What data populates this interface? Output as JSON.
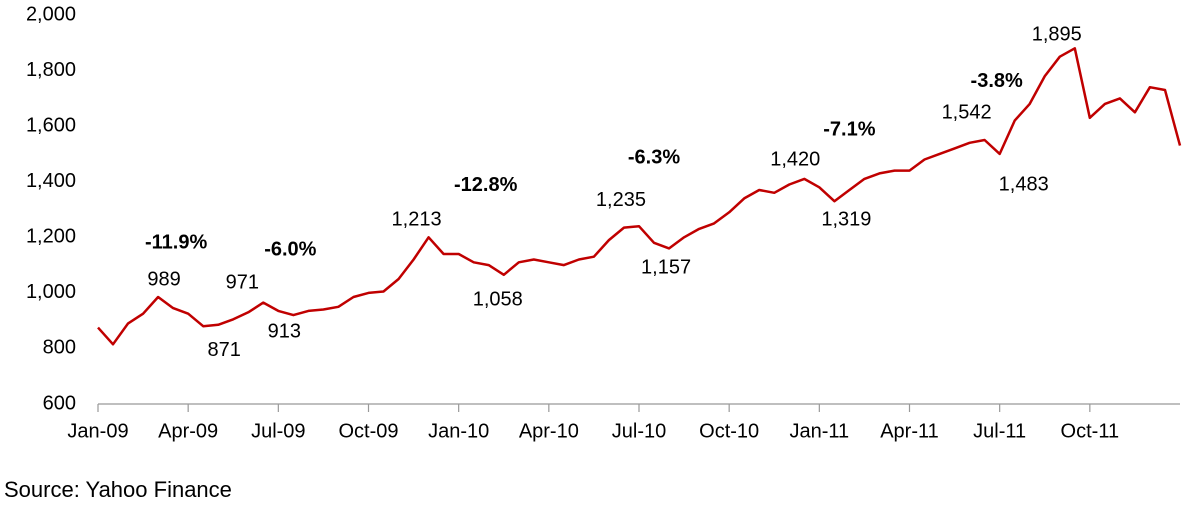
{
  "chart_data": {
    "type": "line",
    "source": "Source: Yahoo Finance",
    "x": [
      0,
      0.5,
      1,
      1.5,
      2,
      2.5,
      3,
      3.5,
      4,
      4.5,
      5,
      5.5,
      6,
      6.5,
      7,
      7.5,
      8,
      8.5,
      9,
      9.5,
      10,
      10.5,
      11,
      11.5,
      12,
      12.5,
      13,
      13.5,
      14,
      14.5,
      15,
      15.5,
      16,
      16.5,
      17,
      17.5,
      18,
      18.5,
      19,
      19.5,
      20,
      20.5,
      21,
      21.5,
      22,
      22.5,
      23,
      23.5,
      24,
      24.5,
      25,
      25.5,
      26,
      26.5,
      27,
      27.5,
      28,
      28.5,
      29,
      29.5,
      30,
      30.5,
      31,
      31.5,
      32,
      32.5,
      33,
      33.5,
      34,
      34.5,
      35,
      35.5,
      36
    ],
    "values": [
      875,
      815,
      890,
      925,
      985,
      945,
      925,
      880,
      885,
      905,
      930,
      965,
      935,
      920,
      935,
      940,
      950,
      985,
      1000,
      1005,
      1050,
      1120,
      1200,
      1140,
      1140,
      1110,
      1100,
      1065,
      1110,
      1120,
      1110,
      1100,
      1120,
      1130,
      1190,
      1235,
      1240,
      1180,
      1160,
      1200,
      1230,
      1250,
      1290,
      1340,
      1370,
      1360,
      1390,
      1410,
      1380,
      1330,
      1370,
      1410,
      1430,
      1440,
      1440,
      1480,
      1500,
      1520,
      1540,
      1550,
      1500,
      1620,
      1680,
      1780,
      1850,
      1880,
      1630,
      1680,
      1700,
      1650,
      1740,
      1730,
      1530
    ],
    "color": "#c00000",
    "xlim": [
      0,
      36
    ],
    "ylim": [
      600,
      2000
    ],
    "xticks": [
      {
        "value": 0,
        "label": "Jan-09"
      },
      {
        "value": 3,
        "label": "Apr-09"
      },
      {
        "value": 6,
        "label": "Jul-09"
      },
      {
        "value": 9,
        "label": "Oct-09"
      },
      {
        "value": 12,
        "label": "Jan-10"
      },
      {
        "value": 15,
        "label": "Apr-10"
      },
      {
        "value": 18,
        "label": "Jul-10"
      },
      {
        "value": 21,
        "label": "Oct-10"
      },
      {
        "value": 24,
        "label": "Jan-11"
      },
      {
        "value": 27,
        "label": "Apr-11"
      },
      {
        "value": 30,
        "label": "Jul-11"
      },
      {
        "value": 33,
        "label": "Oct-11"
      }
    ],
    "yticks": [
      600,
      800,
      {
        "value": 1000,
        "label": "1,000"
      },
      {
        "value": 1200,
        "label": "1,200"
      },
      {
        "value": 1400,
        "label": "1,400"
      },
      {
        "value": 1600,
        "label": "1,600"
      },
      {
        "value": 1800,
        "label": "1,800"
      },
      {
        "value": 2000,
        "label": "2,000"
      }
    ],
    "grid": false,
    "annotations": [
      {
        "text": "989",
        "x": 2.2,
        "y": 1046,
        "bold": false
      },
      {
        "text": "871",
        "x": 4.2,
        "y": 791,
        "bold": false
      },
      {
        "text": "-11.9%",
        "x": 2.6,
        "y": 1179,
        "bold": true
      },
      {
        "text": "971",
        "x": 4.8,
        "y": 1035,
        "bold": false
      },
      {
        "text": "-6.0%",
        "x": 6.4,
        "y": 1154,
        "bold": true
      },
      {
        "text": "913",
        "x": 6.2,
        "y": 859,
        "bold": false
      },
      {
        "text": "1,213",
        "x": 10.6,
        "y": 1262,
        "bold": false
      },
      {
        "text": "-12.8%",
        "x": 12.9,
        "y": 1385,
        "bold": true
      },
      {
        "text": "1,058",
        "x": 13.3,
        "y": 974,
        "bold": false
      },
      {
        "text": "1,235",
        "x": 17.4,
        "y": 1331,
        "bold": false
      },
      {
        "text": "-6.3%",
        "x": 18.5,
        "y": 1485,
        "bold": true
      },
      {
        "text": "1,157",
        "x": 18.9,
        "y": 1089,
        "bold": false
      },
      {
        "text": "1,420",
        "x": 23.2,
        "y": 1478,
        "bold": false
      },
      {
        "text": "-7.1%",
        "x": 25.0,
        "y": 1586,
        "bold": true
      },
      {
        "text": "1,319",
        "x": 24.9,
        "y": 1262,
        "bold": false
      },
      {
        "text": "1,542",
        "x": 28.9,
        "y": 1647,
        "bold": false
      },
      {
        "text": "-3.8%",
        "x": 29.9,
        "y": 1759,
        "bold": true
      },
      {
        "text": "1,483",
        "x": 30.8,
        "y": 1388,
        "bold": false
      },
      {
        "text": "1,895",
        "x": 31.9,
        "y": 1928,
        "bold": false
      }
    ]
  }
}
